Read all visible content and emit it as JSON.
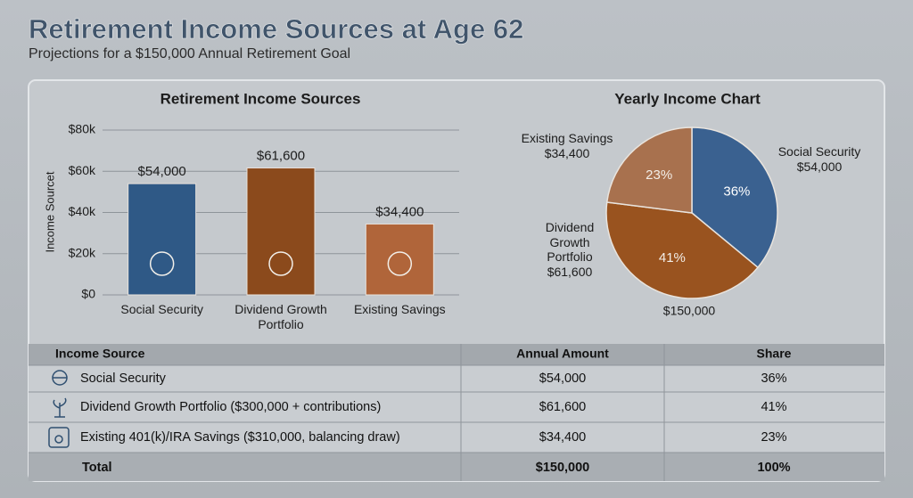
{
  "header": {
    "title": "Retirement Income Sources at Age 62",
    "subtitle": "Projections for a $150,000 Annual Retirement Goal"
  },
  "chart_data": [
    {
      "type": "bar",
      "title": "Retirement Income Sources",
      "y_label": "Income Sourcet",
      "categories": [
        "Social Security",
        "Dividend Growth Portfolio",
        "Existing Savings"
      ],
      "values": [
        54000,
        61600,
        34400
      ],
      "value_labels": [
        "$54,000",
        "$61,600",
        "$34,400"
      ],
      "colors": [
        "#2f5986",
        "#8b4a1c",
        "#b0653a"
      ],
      "ylim": [
        0,
        80000
      ],
      "yticks": [
        {
          "value": 0,
          "label": "$0"
        },
        {
          "value": 20000,
          "label": "$20k"
        },
        {
          "value": 40000,
          "label": "$40k"
        },
        {
          "value": 60000,
          "label": "$60k"
        },
        {
          "value": 80000,
          "label": "$80k"
        }
      ],
      "grid": true
    },
    {
      "type": "pie",
      "title": "Yearly Income Chart",
      "categories": [
        "Social Security",
        "Dividend Growth Portfolio",
        "Existing Savings"
      ],
      "values": [
        36,
        41,
        23
      ],
      "value_labels": [
        "36%",
        "41%",
        "23%"
      ],
      "amount_labels": [
        "$54,000",
        "$61,600",
        "$34,400"
      ],
      "total_label": "$150,000",
      "colors": [
        "#3a6190",
        "#99531f",
        "#a8714e"
      ]
    }
  ],
  "table": {
    "columns": [
      "Income Source",
      "Annual Amount",
      "Share"
    ],
    "rows": [
      [
        "Social Security",
        "$54,000",
        "36%"
      ],
      [
        "Dividend Growth Portfolio ($300,000 + contributions)",
        "$61,600",
        "41%"
      ],
      [
        "Existing 401(k)/IRA Savings ($310,000, balancing draw)",
        "$34,400",
        "23%"
      ],
      [
        "Total",
        "$150,000",
        "100%"
      ]
    ]
  }
}
